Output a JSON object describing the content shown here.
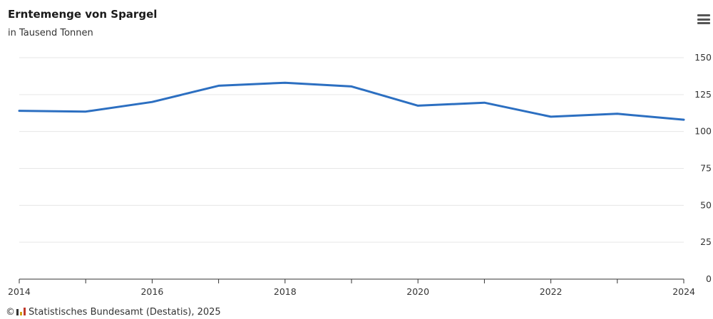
{
  "title": "Erntemenge von Spargel",
  "subtitle": "in Tausend Tonnen",
  "source": {
    "copyright": "©",
    "text": "Statistisches Bundesamt (Destatis), 2025"
  },
  "menu_icon": "hamburger-menu-icon",
  "colors": {
    "line": "#2c6fc1",
    "grid": "#e6e6e6",
    "axis": "#333333"
  },
  "chart_data": {
    "type": "line",
    "title": "Erntemenge von Spargel",
    "subtitle": "in Tausend Tonnen",
    "x": [
      2014,
      2015,
      2016,
      2017,
      2018,
      2019,
      2020,
      2021,
      2022,
      2023,
      2024
    ],
    "series": [
      {
        "values": [
          114,
          113.5,
          120,
          131,
          133,
          130.5,
          117.5,
          119.5,
          110,
          112,
          108
        ]
      }
    ],
    "x_tick_labels": [
      "2014",
      "2016",
      "2018",
      "2020",
      "2022",
      "2024"
    ],
    "y_tick_labels": [
      "0",
      "25",
      "50",
      "75",
      "100",
      "125",
      "150"
    ],
    "xlim": [
      2014,
      2024
    ],
    "ylim": [
      0,
      150
    ],
    "y_axis_side": "right",
    "grid": "horizontal",
    "legend": false
  }
}
